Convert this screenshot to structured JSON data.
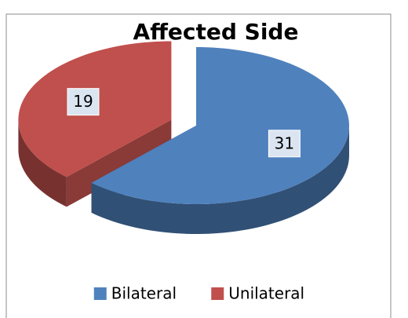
{
  "chart_data": {
    "type": "pie",
    "title": "Affected Side",
    "categories": [
      "Bilateral",
      "Unilateral"
    ],
    "values": [
      31,
      19
    ],
    "colors": [
      "#4f81bd",
      "#c0504d"
    ],
    "legend": "bottom"
  }
}
